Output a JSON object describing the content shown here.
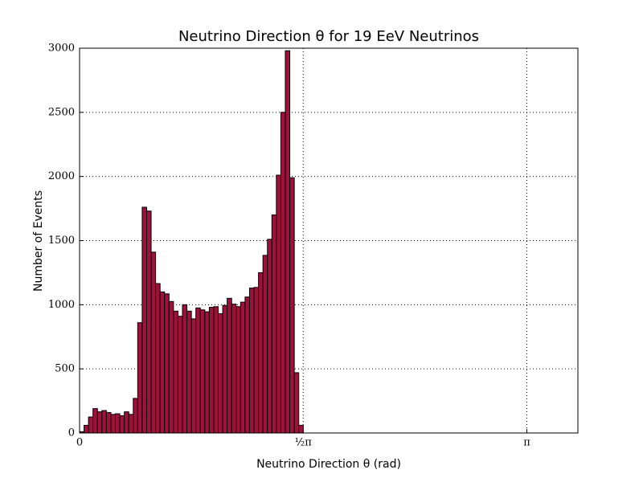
{
  "chart_data": {
    "type": "histogram",
    "title": "Neutrino Direction θ for 19 EeV Neutrinos",
    "x_label": "Neutrino Direction θ (rad)",
    "y_label": "Number of Events",
    "bins": [
      0,
      0.0314,
      0.0628,
      0.0942,
      0.1257,
      0.1571,
      0.1885,
      0.2199,
      0.2513,
      0.2827,
      0.3142,
      0.3456,
      0.377,
      0.4084,
      0.4398,
      0.4712,
      0.5027,
      0.5341,
      0.5655,
      0.5969,
      0.6283,
      0.6597,
      0.6912,
      0.7226,
      0.754,
      0.7854,
      0.8168,
      0.8482,
      0.8796,
      0.9111,
      0.9425,
      0.9739,
      1.0053,
      1.0367,
      1.0681,
      1.0996,
      1.131,
      1.1624,
      1.1938,
      1.2252,
      1.2566,
      1.2881,
      1.3195,
      1.3509,
      1.3823,
      1.4137,
      1.4451,
      1.4765,
      1.508,
      1.5394,
      1.5708,
      1.6022
    ],
    "values": [
      10,
      60,
      125,
      190,
      165,
      175,
      160,
      145,
      150,
      135,
      165,
      145,
      270,
      860,
      1760,
      1730,
      1410,
      1165,
      1100,
      1085,
      1025,
      950,
      910,
      1000,
      950,
      890,
      975,
      960,
      945,
      980,
      985,
      930,
      995,
      1050,
      1005,
      985,
      1020,
      1060,
      1130,
      1135,
      1250,
      1385,
      1510,
      1700,
      2010,
      2500,
      2980,
      1990,
      470,
      60,
      0
    ],
    "color": "#a0103c",
    "xlim": [
      0,
      3.5
    ],
    "xticks": [
      0,
      {
        "value": 1.5708,
        "label": "½π"
      },
      {
        "value": 3.1416,
        "label": "π"
      }
    ],
    "ylim": [
      0,
      3000
    ],
    "yticks": [
      0,
      500,
      1000,
      1500,
      2000,
      2500,
      3000
    ],
    "grid": true
  }
}
